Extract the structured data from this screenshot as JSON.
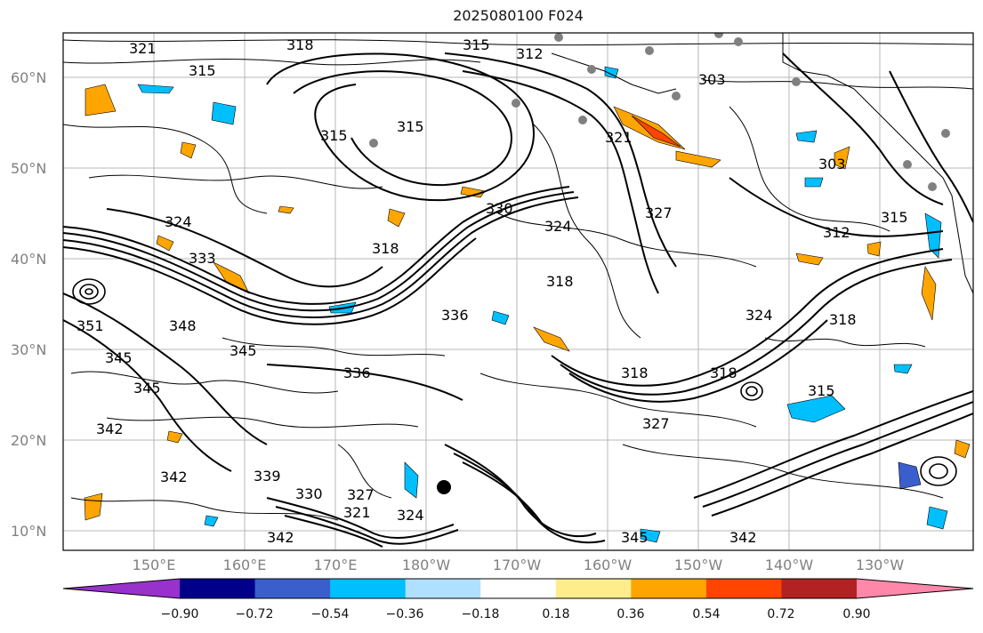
{
  "title": "2025080100 F024",
  "lat_labels": [
    "60°N",
    "50°N",
    "40°N",
    "30°N",
    "20°N",
    "10°N"
  ],
  "lon_labels": [
    "150°E",
    "160°E",
    "170°E",
    "180°W",
    "170°W",
    "160°W",
    "150°W",
    "140°W",
    "130°W"
  ],
  "contour_labels": [
    "321",
    "315",
    "318",
    "315",
    "312",
    "315",
    "315",
    "324",
    "327",
    "321",
    "324",
    "333",
    "318",
    "330",
    "327",
    "312",
    "315",
    "318",
    "351",
    "348",
    "345",
    "345",
    "336",
    "318",
    "318",
    "324",
    "315",
    "342",
    "342",
    "336",
    "339",
    "330",
    "327",
    "321",
    "324",
    "342",
    "345",
    "342",
    "345",
    "303",
    "303",
    "318"
  ],
  "colorbar": {
    "ticks": [
      "−0.90",
      "−0.72",
      "−0.54",
      "−0.36",
      "−0.18",
      "0.18",
      "0.36",
      "0.54",
      "0.72",
      "0.90"
    ],
    "colors": [
      "#9932cc",
      "#00008b",
      "#3a5fcd",
      "#00bfff",
      "#b0e0ff",
      "#ffffff",
      "#ffec8b",
      "#ffa500",
      "#ff4500",
      "#b22222",
      "#ff88aa"
    ]
  }
}
